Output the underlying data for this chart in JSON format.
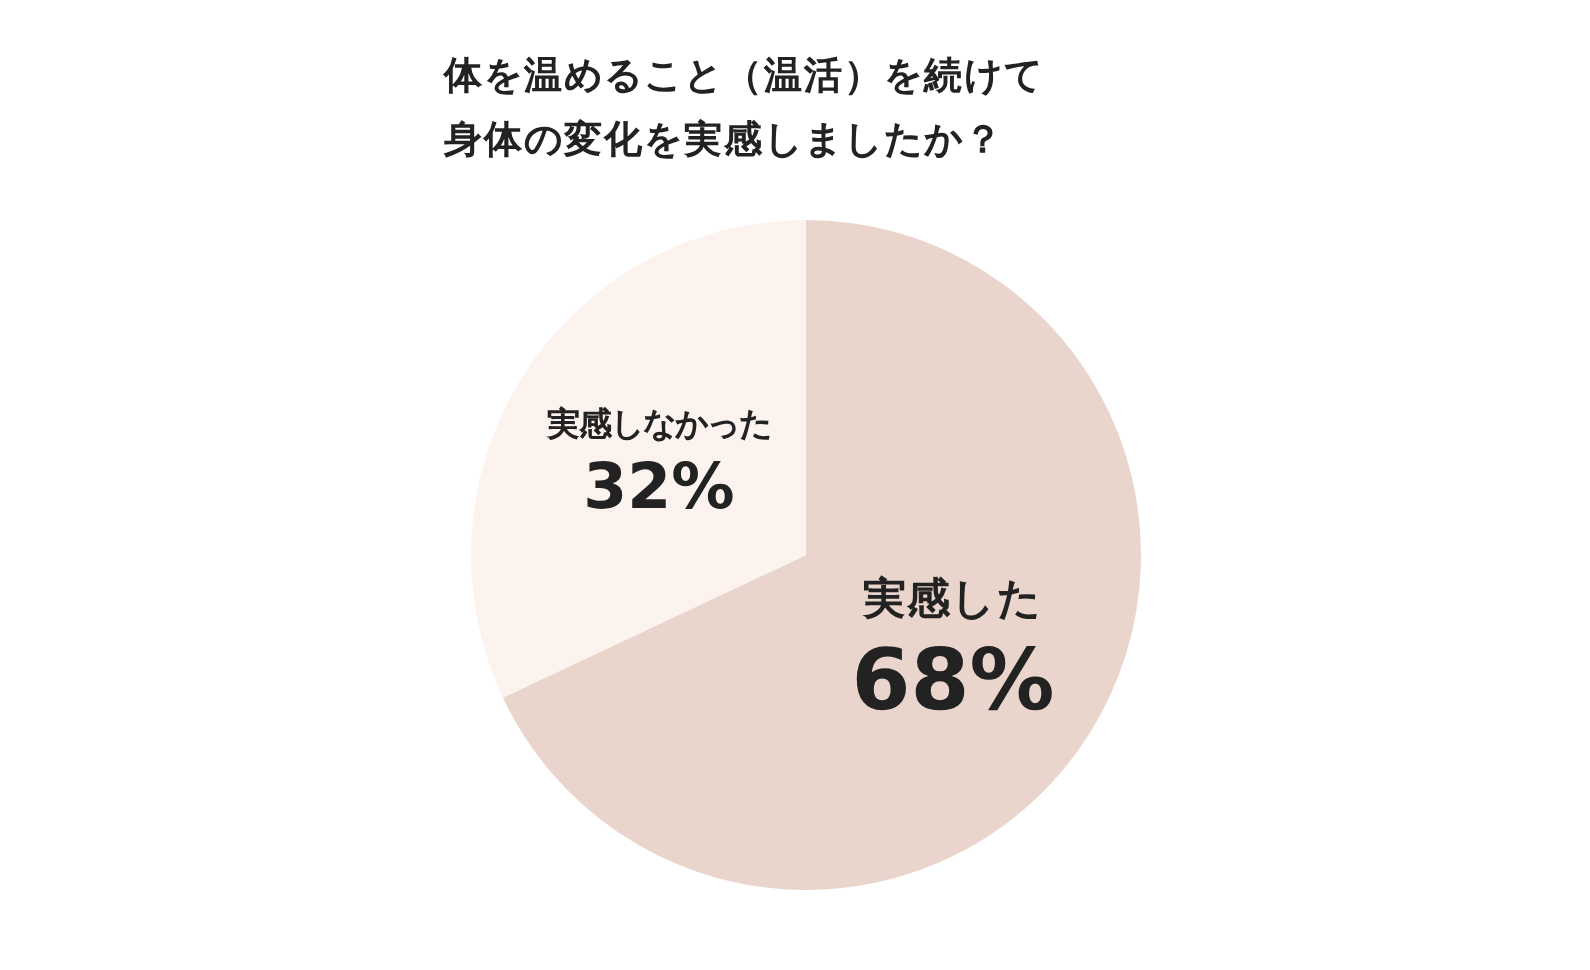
{
  "chart_data": {
    "type": "pie",
    "title": "体を温めること（温活）を続けて身体の変化を実感しましたか？",
    "categories": [
      "実感した",
      "実感しなかった"
    ],
    "values": [
      68,
      32
    ],
    "value_labels": [
      "68%",
      "32%"
    ],
    "colors": [
      "#ead5cc",
      "#fdf3ee"
    ],
    "legend": false
  }
}
